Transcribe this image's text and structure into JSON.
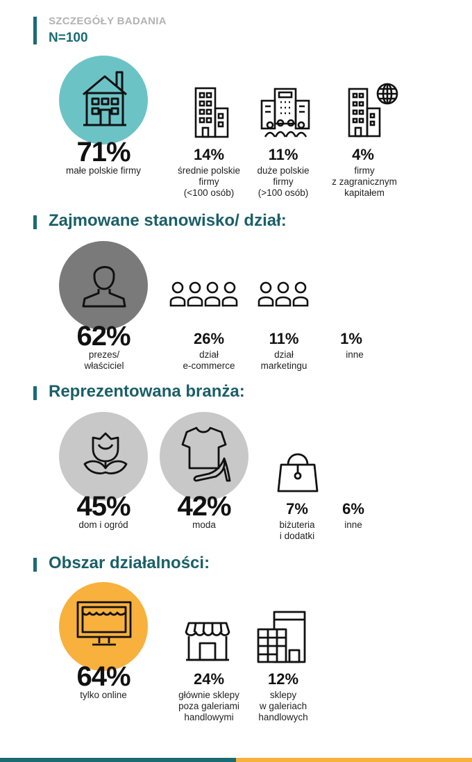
{
  "header": {
    "overline": "SZCZEGÓŁY BADANIA",
    "sample": "N=100"
  },
  "colors": {
    "teal_dark": "#1a6b74",
    "teal_light": "#6cc3c6",
    "gray_dark": "#7a7a7a",
    "gray_light": "#c8c8c8",
    "orange": "#f8b13d"
  },
  "company": {
    "items": [
      {
        "percent": "71%",
        "label": "małe polskie firmy",
        "icon": "house-icon"
      },
      {
        "percent": "14%",
        "label_lines": [
          "średnie polskie",
          "firmy",
          "(<100 osób)"
        ],
        "icon": "office-building-icon"
      },
      {
        "percent": "11%",
        "label_lines": [
          "duże polskie",
          "firmy",
          "(>100 osób)"
        ],
        "icon": "corporate-building-icon"
      },
      {
        "percent": "4%",
        "label_lines": [
          "firmy",
          "z zagranicznym",
          "kapitałem"
        ],
        "icon": "global-building-icon"
      }
    ]
  },
  "position": {
    "title": "Zajmowane stanowisko/ dział:",
    "items": [
      {
        "percent": "62%",
        "label_lines": [
          "prezes/",
          "właściciel"
        ],
        "icon": "person-icon"
      },
      {
        "percent": "26%",
        "label_lines": [
          "dział",
          "e-commerce"
        ],
        "icon": "team-four-icon"
      },
      {
        "percent": "11%",
        "label_lines": [
          "dział",
          "marketingu"
        ],
        "icon": "team-three-icon"
      },
      {
        "percent": "1%",
        "label": "inne"
      }
    ]
  },
  "industry": {
    "title": "Reprezentowana branża:",
    "items": [
      {
        "percent": "45%",
        "label": "dom i ogród",
        "icon": "flower-icon"
      },
      {
        "percent": "42%",
        "label": "moda",
        "icon": "shirt-heel-icon"
      },
      {
        "percent": "7%",
        "label_lines": [
          "biżuteria",
          "i dodatki"
        ],
        "icon": "handbag-icon"
      },
      {
        "percent": "6%",
        "label": "inne"
      }
    ]
  },
  "area": {
    "title": "Obszar działalności:",
    "items": [
      {
        "percent": "64%",
        "label": "tylko online",
        "icon": "online-store-icon"
      },
      {
        "percent": "24%",
        "label_lines": [
          "głównie sklepy",
          "poza galeriami",
          "handlowymi"
        ],
        "icon": "storefront-icon"
      },
      {
        "percent": "12%",
        "label_lines": [
          "sklepy",
          "w galeriach",
          "handlowych"
        ],
        "icon": "mall-icon"
      }
    ]
  }
}
